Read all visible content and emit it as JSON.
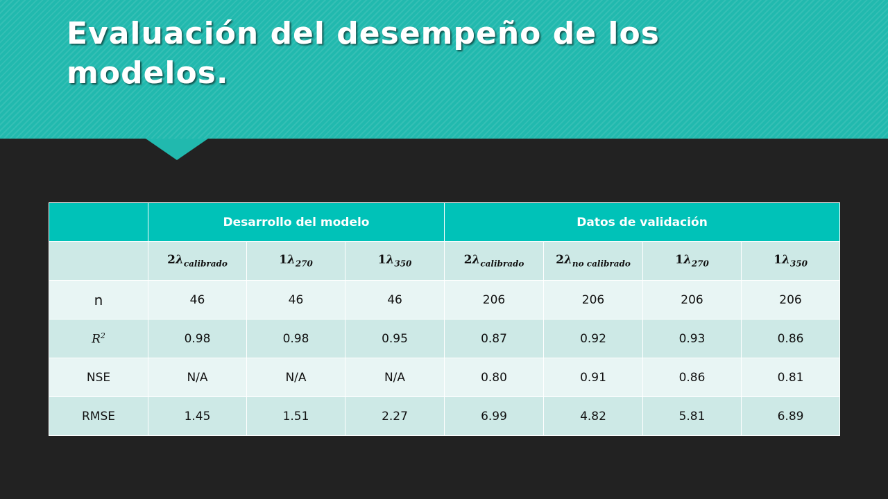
{
  "slide": {
    "title": "Evaluación del desempeño de los modelos."
  },
  "table": {
    "groups": {
      "development": "Desarrollo del modelo",
      "validation": "Datos de validación"
    },
    "columns": [
      {
        "coef": "2",
        "symbol": "λ",
        "sub": "calibrado"
      },
      {
        "coef": "1",
        "symbol": "λ",
        "sub": "270"
      },
      {
        "coef": "1",
        "symbol": "λ",
        "sub": "350"
      },
      {
        "coef": "2",
        "symbol": "λ",
        "sub": "calibrado"
      },
      {
        "coef": "2",
        "symbol": "λ",
        "sub": "no calibrado"
      },
      {
        "coef": "1",
        "symbol": "λ",
        "sub": "270"
      },
      {
        "coef": "1",
        "symbol": "λ",
        "sub": "350"
      }
    ],
    "rows": [
      {
        "label": "n",
        "values": [
          "46",
          "46",
          "46",
          "206",
          "206",
          "206",
          "206"
        ]
      },
      {
        "label": "R",
        "label_sup": "2",
        "values": [
          "0.98",
          "0.98",
          "0.95",
          "0.87",
          "0.92",
          "0.93",
          "0.86"
        ]
      },
      {
        "label": "NSE",
        "values": [
          "N/A",
          "N/A",
          "N/A",
          "0.80",
          "0.91",
          "0.86",
          "0.81"
        ]
      },
      {
        "label": "RMSE",
        "values": [
          "1.45",
          "1.51",
          "2.27",
          "6.99",
          "4.82",
          "5.81",
          "6.89"
        ]
      }
    ]
  },
  "colors": {
    "title_band": "#21b9ae",
    "header": "#00c2b8",
    "row_light": "#e8f5f4",
    "row_dark": "#cde9e6",
    "background": "#222222"
  }
}
